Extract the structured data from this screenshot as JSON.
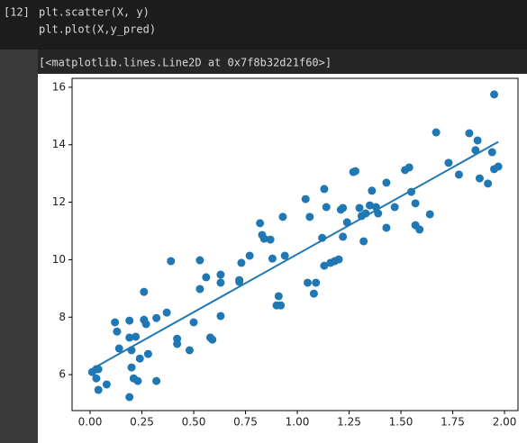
{
  "cell": {
    "prompt": "[12]",
    "code": [
      "plt.scatter(X, y)",
      "plt.plot(X,y_pred)"
    ]
  },
  "output_text": "[<matplotlib.lines.Line2D at 0x7f8b32d21f60>]",
  "chart_data": {
    "type": "scatter",
    "series": [
      {
        "type": "scatter",
        "color": "#1f77b4",
        "x": [
          0.01,
          0.03,
          0.04,
          0.03,
          0.04,
          0.08,
          0.12,
          0.13,
          0.14,
          0.19,
          0.19,
          0.2,
          0.2,
          0.21,
          0.22,
          0.19,
          0.23,
          0.24,
          0.26,
          0.26,
          0.27,
          0.28,
          0.32,
          0.32,
          0.37,
          0.39,
          0.42,
          0.42,
          0.48,
          0.5,
          0.53,
          0.53,
          0.56,
          0.58,
          0.59,
          0.63,
          0.63,
          0.63,
          0.72,
          0.72,
          0.73,
          0.77,
          0.82,
          0.83,
          0.84,
          0.87,
          0.88,
          0.9,
          0.91,
          0.92,
          0.93,
          0.94,
          1.04,
          1.05,
          1.06,
          1.08,
          1.09,
          1.12,
          1.13,
          1.13,
          1.14,
          1.16,
          1.18,
          1.2,
          1.21,
          1.22,
          1.22,
          1.24,
          1.27,
          1.28,
          1.3,
          1.31,
          1.32,
          1.33,
          1.35,
          1.36,
          1.38,
          1.39,
          1.43,
          1.43,
          1.47,
          1.52,
          1.54,
          1.55,
          1.57,
          1.57,
          1.59,
          1.64,
          1.67,
          1.73,
          1.78,
          1.83,
          1.86,
          1.87,
          1.88,
          1.92,
          1.94,
          1.95,
          1.95,
          1.97
        ],
        "y": [
          6.09,
          6.19,
          6.19,
          5.87,
          5.47,
          5.66,
          7.82,
          7.5,
          6.91,
          7.29,
          7.88,
          6.25,
          6.85,
          5.87,
          7.32,
          5.22,
          5.78,
          6.56,
          8.88,
          7.91,
          7.76,
          6.72,
          5.78,
          7.97,
          8.16,
          9.95,
          7.25,
          7.07,
          6.85,
          7.82,
          9.98,
          8.98,
          9.39,
          7.29,
          7.22,
          9.2,
          9.48,
          8.04,
          9.23,
          9.29,
          9.89,
          10.14,
          11.27,
          10.86,
          10.73,
          10.7,
          10.04,
          8.41,
          8.73,
          8.41,
          11.49,
          10.14,
          12.11,
          9.2,
          11.49,
          8.82,
          9.2,
          10.76,
          12.46,
          9.79,
          11.83,
          9.89,
          9.95,
          10.01,
          11.74,
          11.8,
          10.8,
          11.3,
          13.05,
          13.08,
          11.8,
          11.52,
          10.64,
          11.61,
          11.89,
          12.4,
          11.83,
          11.61,
          12.68,
          11.11,
          11.83,
          13.12,
          13.21,
          12.36,
          11.96,
          11.2,
          11.05,
          11.58,
          14.43,
          13.37,
          12.96,
          14.4,
          13.81,
          14.15,
          12.83,
          12.65,
          13.74,
          15.75,
          13.15,
          13.24
        ]
      },
      {
        "type": "line",
        "color": "#1f77b4",
        "x": [
          0.01,
          1.97
        ],
        "y": [
          6.2,
          14.1
        ]
      }
    ],
    "xlim": [
      -0.087,
      2.065
    ],
    "ylim": [
      4.75,
      16.31
    ],
    "xticks": [
      {
        "value": 0,
        "label": "0.00"
      },
      {
        "value": 0.25,
        "label": "0.25"
      },
      {
        "value": 0.5,
        "label": "0.50"
      },
      {
        "value": 0.75,
        "label": "0.75"
      },
      {
        "value": 1,
        "label": "1.00"
      },
      {
        "value": 1.25,
        "label": "1.25"
      },
      {
        "value": 1.5,
        "label": "1.50"
      },
      {
        "value": 1.75,
        "label": "1.75"
      },
      {
        "value": 2,
        "label": "2.00"
      }
    ],
    "yticks": [
      6,
      8,
      10,
      12,
      14,
      16
    ]
  }
}
